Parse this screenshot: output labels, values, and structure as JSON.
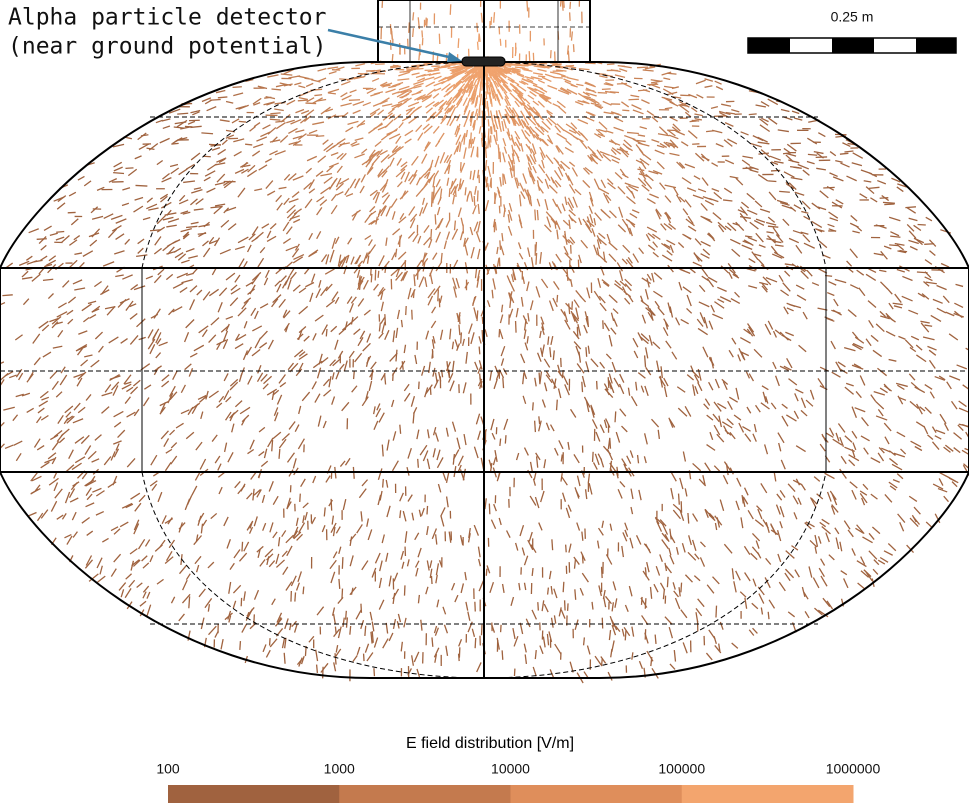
{
  "annotation": {
    "lines": [
      "Alpha particle detector",
      "(near ground potential)"
    ]
  },
  "scale_bar": {
    "label": "0.25 m"
  },
  "colorbar": {
    "title": "E field distribution [V/m]",
    "ticks": [
      "100",
      "1000",
      "10000",
      "100000",
      "1000000"
    ],
    "colors": [
      "#a0623f",
      "#c47a4e",
      "#df8e5b",
      "#f3a56e"
    ]
  }
}
